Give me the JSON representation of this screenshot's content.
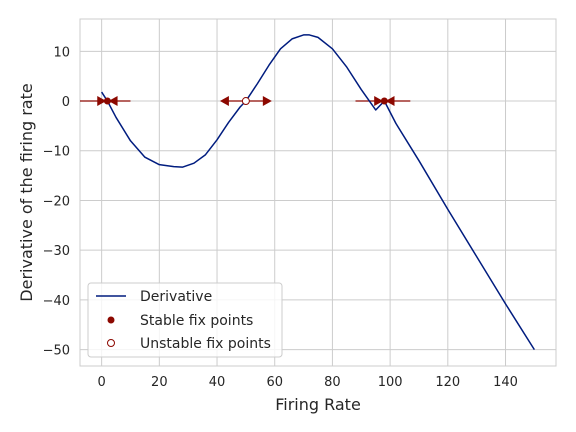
{
  "chart_data": {
    "type": "line",
    "xlabel": "Firing Rate",
    "ylabel": "Derivative of the firing rate",
    "xlim": [
      -7.5,
      157.5
    ],
    "ylim": [
      -53.3,
      16.5
    ],
    "xticks": [
      0,
      20,
      40,
      60,
      80,
      100,
      120,
      140
    ],
    "yticks": [
      10,
      0,
      -10,
      -20,
      -30,
      -40,
      -50
    ],
    "grid": true,
    "legend_position": "lower-left",
    "series": [
      {
        "name": "Derivative",
        "color": "#001c7f",
        "x": [
          0,
          2,
          5,
          10,
          15,
          20,
          25,
          28,
          32,
          36,
          40,
          44,
          48,
          50,
          54,
          58,
          62,
          66,
          70,
          72,
          75,
          80,
          85,
          90,
          95,
          98,
          102,
          110,
          120,
          130,
          140,
          150
        ],
        "y": [
          1.8,
          0,
          -3.3,
          -8,
          -11.3,
          -12.8,
          -13.2,
          -13.3,
          -12.5,
          -10.8,
          -7.8,
          -4.3,
          -1.2,
          0,
          3.5,
          7.2,
          10.5,
          12.5,
          13.3,
          13.3,
          12.8,
          10.5,
          6.8,
          2.3,
          -1.8,
          0,
          -4.5,
          -12,
          -21.8,
          -31.3,
          -40.8,
          -50
        ]
      }
    ],
    "stable_fix_points": {
      "name": "Stable fix points",
      "color": "#8c0800",
      "x": [
        2,
        98
      ],
      "y": [
        0,
        0
      ]
    },
    "unstable_fix_points": {
      "name": "Unstable fix points",
      "color": "#8c0800",
      "x": [
        50
      ],
      "y": [
        0
      ]
    },
    "arrows": [
      {
        "from": -7.5,
        "to": 1.6
      },
      {
        "from": 10,
        "to": 2.4
      },
      {
        "from": 50,
        "to": 41
      },
      {
        "from": 50,
        "to": 59
      },
      {
        "from": 88,
        "to": 97.6
      },
      {
        "from": 107,
        "to": 98.4
      }
    ],
    "arrow_color": "#8c0800"
  }
}
